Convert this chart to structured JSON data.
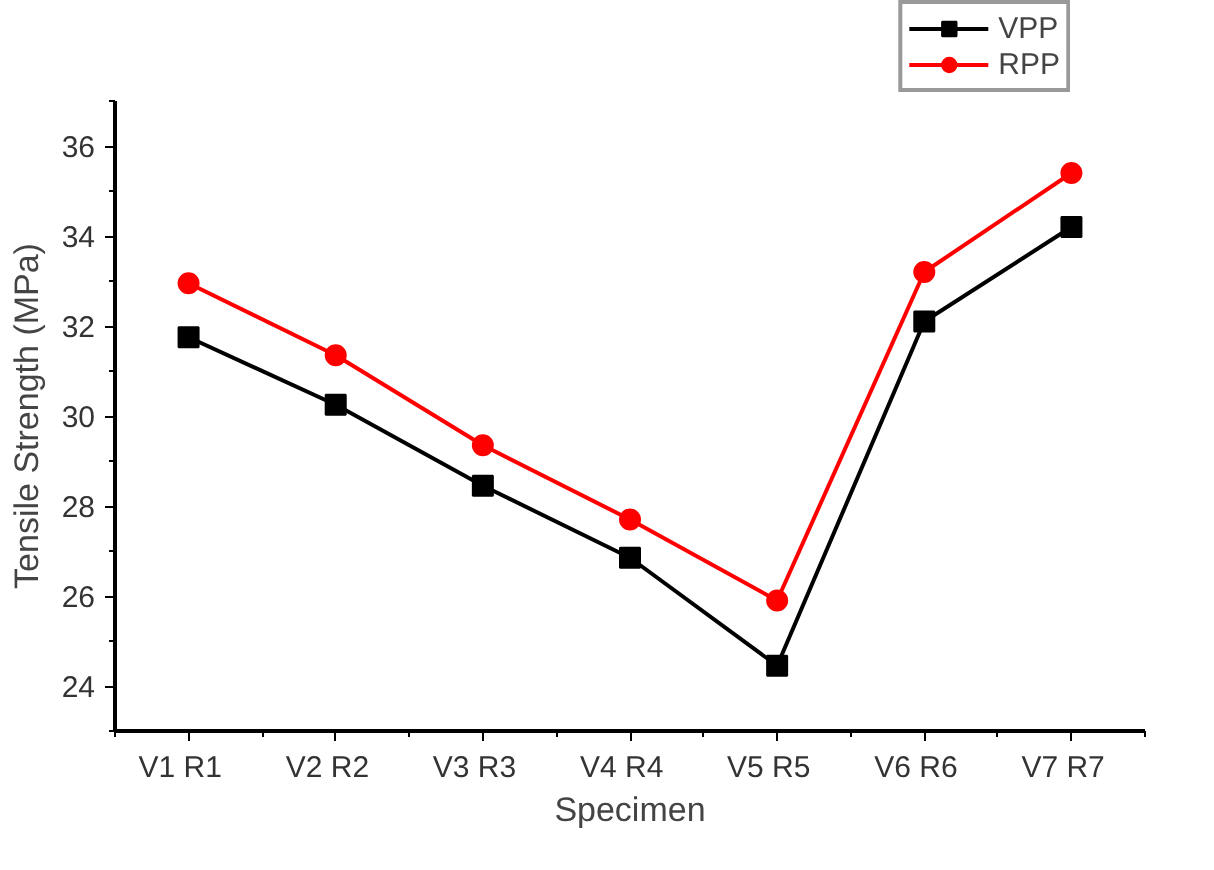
{
  "chart_data": {
    "type": "line",
    "xlabel": "Specimen",
    "ylabel": "Tensile Strength (MPa)",
    "categories": [
      "V1   R1",
      "V2   R2",
      "V3   R3",
      "V4   R4",
      "V5   R5",
      "V6   R6",
      "V7   R7"
    ],
    "series": [
      {
        "name": "VPP",
        "color": "#000000",
        "marker": "square",
        "values": [
          31.75,
          30.25,
          28.45,
          26.85,
          24.45,
          32.1,
          34.2
        ]
      },
      {
        "name": "RPP",
        "color": "#ff0000",
        "marker": "circle",
        "values": [
          32.95,
          31.35,
          29.35,
          27.7,
          25.9,
          33.2,
          35.4
        ]
      }
    ],
    "ylim": [
      23,
      37
    ],
    "yticks": [
      24,
      26,
      28,
      30,
      32,
      34,
      36
    ],
    "grid": false,
    "legend": "top right",
    "line_style": "solid"
  }
}
